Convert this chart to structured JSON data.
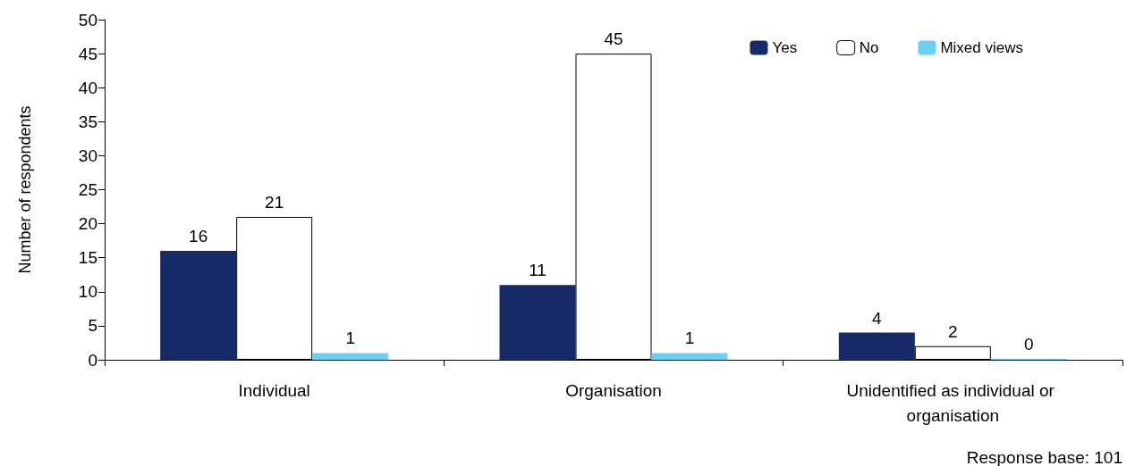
{
  "chart_data": {
    "type": "bar",
    "ylabel": "Number of respondents",
    "categories": [
      "Individual",
      "Organisation",
      "Unidentified as individual or organisation"
    ],
    "series": [
      {
        "name": "Yes",
        "color": "#152a67",
        "values": [
          16,
          11,
          4
        ]
      },
      {
        "name": "No",
        "color": "#ffffff",
        "values": [
          21,
          45,
          2
        ]
      },
      {
        "name": "Mixed views",
        "color": "#6ccff6",
        "values": [
          1,
          1,
          0
        ]
      }
    ],
    "ylim": [
      0,
      50
    ],
    "yticks": [
      0,
      5,
      10,
      15,
      20,
      25,
      30,
      35,
      40,
      45,
      50
    ],
    "grid": false,
    "legend": "top right",
    "data_labels": true,
    "annotations": [
      "Response base: 101"
    ]
  }
}
